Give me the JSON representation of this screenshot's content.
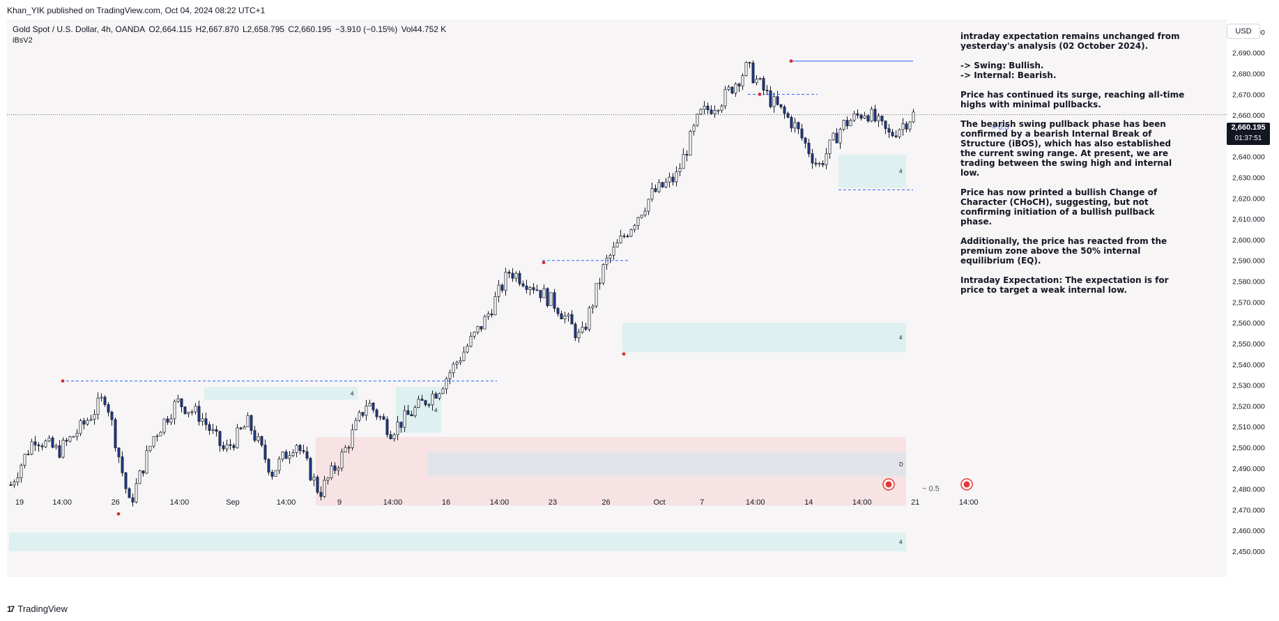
{
  "header": {
    "publisher": "Khan_YIK published on TradingView.com, Oct 04, 2024 08:22 UTC+1"
  },
  "symbol": {
    "name": "Gold Spot / U.S. Dollar, 4h, OANDA",
    "open": "O2,664.115",
    "high": "H2,667.870",
    "low": "L2,658.795",
    "close": "C2,660.195",
    "change": "−3.910 (−0.15%)",
    "volume": "Vol44.752 K",
    "indicator": "iBsV2"
  },
  "price_axis": {
    "currency": "USD",
    "current_price": "2,660.195",
    "countdown": "01:37:51"
  },
  "analysis": {
    "paragraphs": [
      "intraday expectation remains unchanged from yesterday's analysis (02 October 2024).",
      "-> Swing:  Bullish.\n-> Internal:  Bearish.",
      "Price has continued its surge, reaching all-time highs with minimal pullbacks.",
      "The bearish swing pullback phase has been confirmed by a bearish Internal Break of Structure (iBOS), which has also established the current swing range. At present, we are trading between the swing high and internal low.",
      "Price has now printed a bullish Change of Character (CHoCH), suggesting, but not confirming initiation of a bullish pullback phase.",
      "Additionally, the price has reacted from the premium zone above the 50% internal equilibrium (EQ).",
      "Intraday Expectation: The expectation is for price to target a weak internal low."
    ]
  },
  "footer": {
    "brand": "TradingView"
  },
  "colors": {
    "bull": "#ffffff",
    "bear": "#1e3a8a",
    "wick": "#131722",
    "swing_point": "#d32f2f",
    "bos_line": "#2962ff",
    "demand_zone": "#dcefee",
    "supply_zone": "#f7e1e3",
    "eq_zone": "#e2e4e9"
  },
  "chart_data": {
    "type": "candlestick",
    "title": "Gold Spot / U.S. Dollar, 4h, OANDA",
    "y_ticks": [
      "2,450.000",
      "2,460.000",
      "2,470.000",
      "2,480.000",
      "2,490.000",
      "2,500.000",
      "2,510.000",
      "2,520.000",
      "2,530.000",
      "2,540.000",
      "2,550.000",
      "2,560.000",
      "2,570.000",
      "2,580.000",
      "2,590.000",
      "2,600.000",
      "2,610.000",
      "2,620.000",
      "2,630.000",
      "2,640.000",
      "2,650.000",
      "2,660.000",
      "2,670.000",
      "2,680.000",
      "2,690.000",
      "2,700.000"
    ],
    "y_range": [
      2450,
      2705
    ],
    "x_ticks": [
      "19",
      "14:00",
      "26",
      "14:00",
      "Sep",
      "14:00",
      "9",
      "14:00",
      "16",
      "14:00",
      "23",
      "26",
      "Oct",
      "7",
      "14:00",
      "14",
      "14:00",
      "21",
      "14:00"
    ],
    "x_tick_bars": [
      0,
      4,
      9,
      15,
      20,
      25,
      30,
      35,
      40,
      45,
      50,
      55,
      60,
      64,
      69,
      74,
      79,
      84,
      89
    ],
    "bars_per_day": 6,
    "close_path": [
      [
        2480,
        2482
      ],
      [
        2510,
        2505
      ],
      [
        2500,
        2498
      ],
      [
        2512,
        2510
      ],
      [
        2520,
        2525
      ],
      [
        2475,
        2472
      ],
      [
        2500,
        2505
      ],
      [
        2520,
        2522
      ],
      [
        2510,
        2515
      ],
      [
        2500,
        2498
      ],
      [
        2510,
        2512
      ],
      [
        2490,
        2488
      ],
      [
        2500,
        2503
      ],
      [
        2478,
        2478
      ],
      [
        2495,
        2497
      ],
      [
        2525,
        2522
      ],
      [
        2510,
        2508
      ],
      [
        2520,
        2518
      ],
      [
        2530,
        2528
      ],
      [
        2548,
        2545
      ],
      [
        2560,
        2562
      ],
      [
        2590,
        2585
      ],
      [
        2575,
        2578
      ],
      [
        2565,
        2568
      ],
      [
        2550,
        2552
      ],
      [
        2590,
        2588
      ],
      [
        2600,
        2605
      ],
      [
        2620,
        2622
      ],
      [
        2635,
        2630
      ],
      [
        2655,
        2660
      ],
      [
        2665,
        2668
      ],
      [
        2680,
        2683
      ],
      [
        2665,
        2667
      ],
      [
        2650,
        2655
      ],
      [
        2638,
        2635
      ],
      [
        2650,
        2655
      ],
      [
        2660,
        2662
      ],
      [
        2645,
        2650
      ],
      [
        2660,
        2660.195
      ]
    ],
    "swing_points": [
      {
        "label": "high",
        "bar": 15,
        "y": 2532
      },
      {
        "label": "low",
        "bar": 31,
        "y": 2468
      },
      {
        "label": "high",
        "bar": 153,
        "y": 2589
      },
      {
        "label": "low",
        "bar": 176,
        "y": 2545
      },
      {
        "label": "high",
        "bar": 215,
        "y": 2670
      },
      {
        "label": "high",
        "bar": 224,
        "y": 2686
      }
    ],
    "levels": [
      {
        "kind": "bos",
        "from_bar": 15,
        "to_bar": 140,
        "y": 2532
      },
      {
        "kind": "bos",
        "from_bar": 153,
        "to_bar": 178,
        "y": 2590
      },
      {
        "kind": "swing_high",
        "from_bar": 224,
        "to_bar": 270,
        "y": 2686
      },
      {
        "kind": "ibos",
        "from_bar": 212,
        "to_bar": 232,
        "y": 2670
      },
      {
        "kind": "internal_low",
        "from_bar": 238,
        "to_bar": 275,
        "y": 2624
      }
    ],
    "zones": [
      {
        "kind": "demand",
        "from_bar": 56,
        "to_bar": 100,
        "low": 2523,
        "high": 2529,
        "label": "4"
      },
      {
        "kind": "demand",
        "from_bar": 111,
        "to_bar": 124,
        "low": 2507,
        "high": 2529,
        "label": "4"
      },
      {
        "kind": "supply",
        "from_bar": 88,
        "to_bar": 275,
        "low": 2472,
        "high": 2505,
        "label": "4"
      },
      {
        "kind": "eq",
        "from_bar": 120,
        "to_bar": 275,
        "low": 2486,
        "high": 2498,
        "label": "D"
      },
      {
        "kind": "demand",
        "from_bar": 176,
        "to_bar": 275,
        "low": 2546,
        "high": 2560,
        "label": "4"
      },
      {
        "kind": "demand",
        "from_bar": 238,
        "to_bar": 275,
        "low": 2625,
        "high": 2641,
        "label": "4"
      },
      {
        "kind": "demand",
        "from_bar": 0,
        "to_bar": 275,
        "low": 2450,
        "high": 2459,
        "label": "4"
      }
    ],
    "eq_labels": [
      {
        "text": "− 0.5",
        "bar": 262,
        "y": 2479
      },
      {
        "text": "– 0.5",
        "bar": 282,
        "y": 2653
      }
    ],
    "last_price": 2660.195,
    "bar_count": 260
  }
}
